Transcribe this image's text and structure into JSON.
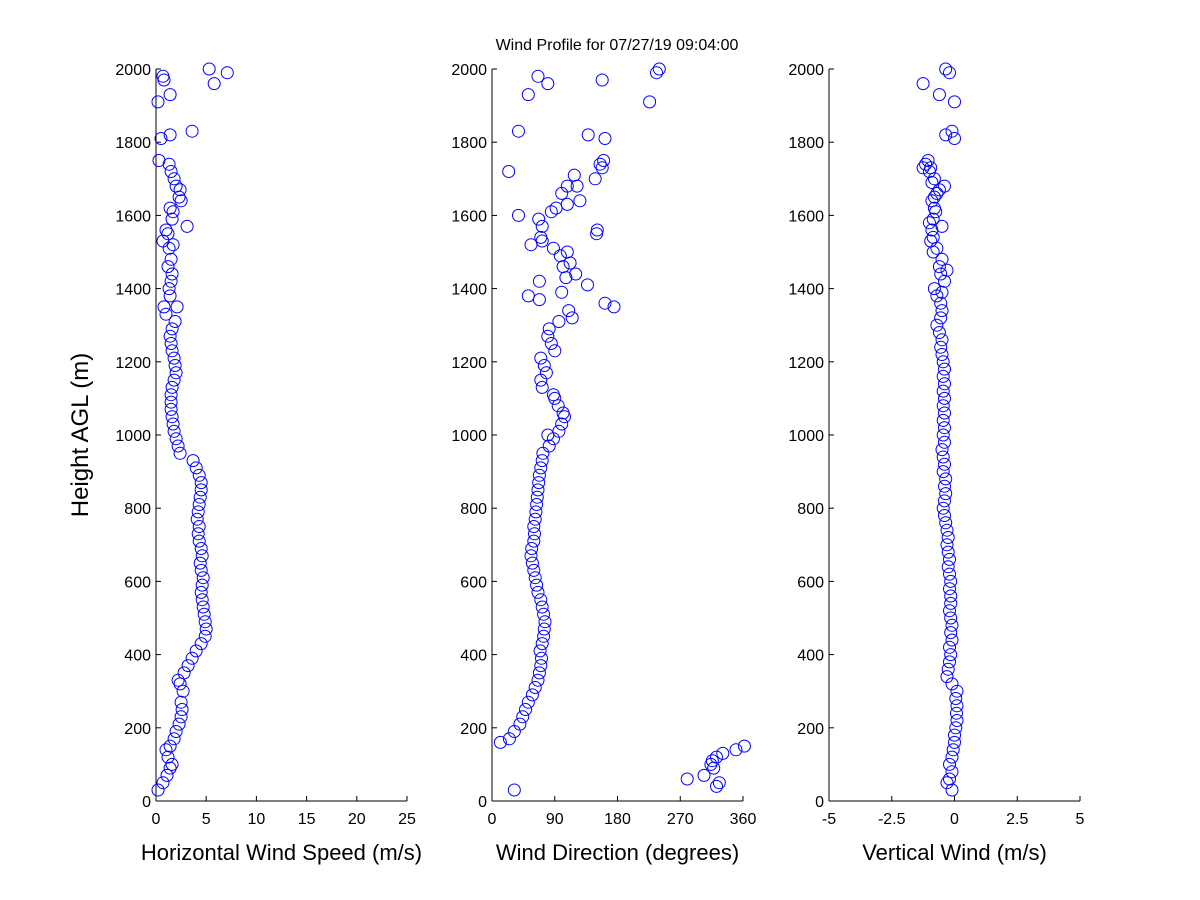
{
  "title": "Wind Profile for  07/27/19 09:04:00",
  "ylabel": "Height AGL (m)",
  "colors": {
    "marker": "#0000ff",
    "axis": "#000000",
    "background": "#ffffff"
  },
  "chart_data": [
    {
      "type": "scatter",
      "xlabel": "Horizontal Wind Speed (m/s)",
      "ylabel": "Height AGL (m)",
      "xlim": [
        0,
        25
      ],
      "ylim": [
        0,
        2000
      ],
      "xticks": [
        0,
        5,
        10,
        15,
        20,
        25
      ],
      "xtick_labels": [
        "0",
        "5",
        "10",
        "15",
        "20",
        "25"
      ],
      "yticks": [
        0,
        200,
        400,
        600,
        800,
        1000,
        1200,
        1400,
        1600,
        1800,
        2000
      ],
      "ytick_labels": [
        "0",
        "200",
        "400",
        "600",
        "800",
        "1000",
        "1200",
        "1400",
        "1600",
        "1800",
        "2000"
      ],
      "grid": false,
      "points": [
        [
          0.2,
          30
        ],
        [
          0.7,
          50
        ],
        [
          1.1,
          70
        ],
        [
          1.4,
          90
        ],
        [
          1.6,
          100
        ],
        [
          1.2,
          120
        ],
        [
          1.0,
          140
        ],
        [
          1.4,
          150
        ],
        [
          1.8,
          170
        ],
        [
          2.0,
          190
        ],
        [
          2.3,
          210
        ],
        [
          2.5,
          230
        ],
        [
          2.6,
          250
        ],
        [
          2.5,
          270
        ],
        [
          2.7,
          300
        ],
        [
          2.4,
          320
        ],
        [
          2.2,
          330
        ],
        [
          2.8,
          350
        ],
        [
          3.2,
          370
        ],
        [
          3.6,
          390
        ],
        [
          4.0,
          410
        ],
        [
          4.5,
          430
        ],
        [
          4.9,
          450
        ],
        [
          5.0,
          470
        ],
        [
          4.9,
          490
        ],
        [
          4.8,
          510
        ],
        [
          4.7,
          530
        ],
        [
          4.6,
          550
        ],
        [
          4.5,
          570
        ],
        [
          4.6,
          590
        ],
        [
          4.7,
          610
        ],
        [
          4.5,
          630
        ],
        [
          4.4,
          650
        ],
        [
          4.6,
          670
        ],
        [
          4.5,
          690
        ],
        [
          4.3,
          710
        ],
        [
          4.2,
          730
        ],
        [
          4.3,
          750
        ],
        [
          4.1,
          770
        ],
        [
          4.2,
          790
        ],
        [
          4.3,
          810
        ],
        [
          4.4,
          830
        ],
        [
          4.5,
          850
        ],
        [
          4.5,
          870
        ],
        [
          4.3,
          890
        ],
        [
          4.0,
          910
        ],
        [
          3.7,
          930
        ],
        [
          2.4,
          950
        ],
        [
          2.2,
          970
        ],
        [
          2.0,
          990
        ],
        [
          1.8,
          1010
        ],
        [
          1.7,
          1030
        ],
        [
          1.6,
          1050
        ],
        [
          1.5,
          1070
        ],
        [
          1.5,
          1090
        ],
        [
          1.5,
          1110
        ],
        [
          1.6,
          1130
        ],
        [
          1.8,
          1150
        ],
        [
          2.0,
          1170
        ],
        [
          1.9,
          1190
        ],
        [
          1.8,
          1210
        ],
        [
          1.6,
          1230
        ],
        [
          1.5,
          1250
        ],
        [
          1.4,
          1270
        ],
        [
          1.6,
          1290
        ],
        [
          1.9,
          1310
        ],
        [
          1.0,
          1330
        ],
        [
          0.8,
          1350
        ],
        [
          2.1,
          1350
        ],
        [
          1.4,
          1380
        ],
        [
          1.3,
          1400
        ],
        [
          1.5,
          1420
        ],
        [
          1.6,
          1440
        ],
        [
          1.2,
          1460
        ],
        [
          1.5,
          1480
        ],
        [
          1.3,
          1510
        ],
        [
          1.7,
          1520
        ],
        [
          0.7,
          1530
        ],
        [
          1.2,
          1550
        ],
        [
          1.0,
          1560
        ],
        [
          3.1,
          1570
        ],
        [
          1.6,
          1590
        ],
        [
          1.7,
          1610
        ],
        [
          1.4,
          1620
        ],
        [
          2.5,
          1640
        ],
        [
          2.3,
          1650
        ],
        [
          2.4,
          1670
        ],
        [
          2.0,
          1680
        ],
        [
          1.8,
          1700
        ],
        [
          1.5,
          1720
        ],
        [
          1.3,
          1740
        ],
        [
          0.3,
          1750
        ],
        [
          1.4,
          1820
        ],
        [
          3.6,
          1830
        ],
        [
          0.5,
          1810
        ],
        [
          0.2,
          1910
        ],
        [
          1.4,
          1930
        ],
        [
          5.8,
          1960
        ],
        [
          0.8,
          1970
        ],
        [
          0.7,
          1980
        ],
        [
          5.3,
          2000
        ],
        [
          7.1,
          1990
        ]
      ]
    },
    {
      "type": "scatter",
      "xlabel": "Wind Direction (degrees)",
      "ylabel": "",
      "xlim": [
        0,
        360
      ],
      "ylim": [
        0,
        2000
      ],
      "xticks": [
        0,
        90,
        180,
        270,
        360
      ],
      "xtick_labels": [
        "0",
        "90",
        "180",
        "270",
        "360"
      ],
      "yticks": [
        0,
        200,
        400,
        600,
        800,
        1000,
        1200,
        1400,
        1600,
        1800,
        2000
      ],
      "ytick_labels": [
        "0",
        "200",
        "400",
        "600",
        "800",
        "1000",
        "1200",
        "1400",
        "1600",
        "1800",
        "2000"
      ],
      "grid": false,
      "points": [
        [
          32,
          30
        ],
        [
          280,
          60
        ],
        [
          304,
          70
        ],
        [
          318,
          90
        ],
        [
          314,
          100
        ],
        [
          316,
          110
        ],
        [
          322,
          40
        ],
        [
          326,
          50
        ],
        [
          331,
          130
        ],
        [
          350,
          140
        ],
        [
          322,
          120
        ],
        [
          362,
          150
        ],
        [
          12,
          160
        ],
        [
          25,
          170
        ],
        [
          32,
          190
        ],
        [
          40,
          210
        ],
        [
          44,
          230
        ],
        [
          48,
          250
        ],
        [
          52,
          270
        ],
        [
          58,
          290
        ],
        [
          62,
          310
        ],
        [
          66,
          330
        ],
        [
          68,
          350
        ],
        [
          70,
          370
        ],
        [
          71,
          390
        ],
        [
          69,
          410
        ],
        [
          72,
          430
        ],
        [
          74,
          450
        ],
        [
          75,
          470
        ],
        [
          76,
          490
        ],
        [
          74,
          510
        ],
        [
          72,
          530
        ],
        [
          70,
          550
        ],
        [
          66,
          570
        ],
        [
          64,
          590
        ],
        [
          62,
          610
        ],
        [
          60,
          630
        ],
        [
          58,
          650
        ],
        [
          56,
          670
        ],
        [
          57,
          690
        ],
        [
          60,
          710
        ],
        [
          61,
          730
        ],
        [
          60,
          750
        ],
        [
          62,
          770
        ],
        [
          63,
          790
        ],
        [
          64,
          810
        ],
        [
          65,
          830
        ],
        [
          66,
          850
        ],
        [
          67,
          870
        ],
        [
          68,
          890
        ],
        [
          70,
          910
        ],
        [
          72,
          930
        ],
        [
          73,
          950
        ],
        [
          82,
          970
        ],
        [
          88,
          990
        ],
        [
          80,
          1000
        ],
        [
          96,
          1010
        ],
        [
          100,
          1030
        ],
        [
          104,
          1050
        ],
        [
          102,
          1060
        ],
        [
          95,
          1080
        ],
        [
          90,
          1100
        ],
        [
          88,
          1110
        ],
        [
          72,
          1130
        ],
        [
          70,
          1150
        ],
        [
          78,
          1170
        ],
        [
          75,
          1190
        ],
        [
          70,
          1210
        ],
        [
          90,
          1230
        ],
        [
          85,
          1250
        ],
        [
          80,
          1270
        ],
        [
          82,
          1290
        ],
        [
          96,
          1310
        ],
        [
          115,
          1320
        ],
        [
          110,
          1340
        ],
        [
          175,
          1350
        ],
        [
          162,
          1360
        ],
        [
          68,
          1370
        ],
        [
          52,
          1380
        ],
        [
          100,
          1390
        ],
        [
          137,
          1410
        ],
        [
          68,
          1420
        ],
        [
          106,
          1430
        ],
        [
          120,
          1440
        ],
        [
          102,
          1460
        ],
        [
          112,
          1470
        ],
        [
          98,
          1490
        ],
        [
          108,
          1500
        ],
        [
          88,
          1510
        ],
        [
          72,
          1530
        ],
        [
          150,
          1550
        ],
        [
          151,
          1560
        ],
        [
          56,
          1520
        ],
        [
          70,
          1540
        ],
        [
          72,
          1570
        ],
        [
          67,
          1590
        ],
        [
          38,
          1600
        ],
        [
          85,
          1610
        ],
        [
          92,
          1620
        ],
        [
          108,
          1630
        ],
        [
          126,
          1640
        ],
        [
          100,
          1660
        ],
        [
          108,
          1680
        ],
        [
          122,
          1680
        ],
        [
          118,
          1710
        ],
        [
          148,
          1700
        ],
        [
          24,
          1720
        ],
        [
          158,
          1730
        ],
        [
          155,
          1740
        ],
        [
          160,
          1750
        ],
        [
          138,
          1820
        ],
        [
          38,
          1830
        ],
        [
          162,
          1810
        ],
        [
          52,
          1930
        ],
        [
          226,
          1910
        ],
        [
          158,
          1970
        ],
        [
          66,
          1980
        ],
        [
          80,
          1960
        ],
        [
          236,
          1990
        ],
        [
          240,
          2000
        ]
      ]
    },
    {
      "type": "scatter",
      "xlabel": "Vertical Wind (m/s)",
      "ylabel": "",
      "xlim": [
        -5,
        5
      ],
      "ylim": [
        0,
        2000
      ],
      "xticks": [
        -5,
        -2.5,
        0,
        2.5,
        5
      ],
      "xtick_labels": [
        "-5",
        "-2.5",
        "0",
        "2.5",
        "5"
      ],
      "yticks": [
        0,
        200,
        400,
        600,
        800,
        1000,
        1200,
        1400,
        1600,
        1800,
        2000
      ],
      "ytick_labels": [
        "0",
        "200",
        "400",
        "600",
        "800",
        "1000",
        "1200",
        "1400",
        "1600",
        "1800",
        "2000"
      ],
      "grid": false,
      "points": [
        [
          -0.1,
          30
        ],
        [
          -0.3,
          50
        ],
        [
          -0.2,
          60
        ],
        [
          -0.1,
          80
        ],
        [
          -0.2,
          100
        ],
        [
          -0.1,
          120
        ],
        [
          -0.05,
          140
        ],
        [
          0.0,
          160
        ],
        [
          0.0,
          180
        ],
        [
          0.05,
          200
        ],
        [
          0.1,
          220
        ],
        [
          0.08,
          240
        ],
        [
          0.1,
          260
        ],
        [
          0.05,
          280
        ],
        [
          0.1,
          300
        ],
        [
          -0.1,
          320
        ],
        [
          -0.3,
          340
        ],
        [
          -0.25,
          360
        ],
        [
          -0.2,
          380
        ],
        [
          -0.15,
          400
        ],
        [
          -0.2,
          420
        ],
        [
          -0.1,
          440
        ],
        [
          -0.15,
          460
        ],
        [
          -0.1,
          480
        ],
        [
          -0.15,
          500
        ],
        [
          -0.2,
          520
        ],
        [
          -0.15,
          540
        ],
        [
          -0.15,
          560
        ],
        [
          -0.2,
          580
        ],
        [
          -0.15,
          600
        ],
        [
          -0.2,
          620
        ],
        [
          -0.25,
          640
        ],
        [
          -0.2,
          660
        ],
        [
          -0.25,
          680
        ],
        [
          -0.3,
          700
        ],
        [
          -0.25,
          720
        ],
        [
          -0.3,
          740
        ],
        [
          -0.35,
          760
        ],
        [
          -0.4,
          780
        ],
        [
          -0.45,
          800
        ],
        [
          -0.4,
          820
        ],
        [
          -0.35,
          840
        ],
        [
          -0.4,
          860
        ],
        [
          -0.35,
          880
        ],
        [
          -0.45,
          900
        ],
        [
          -0.4,
          920
        ],
        [
          -0.45,
          940
        ],
        [
          -0.5,
          960
        ],
        [
          -0.4,
          980
        ],
        [
          -0.45,
          1000
        ],
        [
          -0.4,
          1020
        ],
        [
          -0.45,
          1040
        ],
        [
          -0.4,
          1060
        ],
        [
          -0.45,
          1080
        ],
        [
          -0.4,
          1100
        ],
        [
          -0.45,
          1120
        ],
        [
          -0.4,
          1140
        ],
        [
          -0.45,
          1160
        ],
        [
          -0.4,
          1180
        ],
        [
          -0.45,
          1200
        ],
        [
          -0.5,
          1220
        ],
        [
          -0.55,
          1240
        ],
        [
          -0.5,
          1260
        ],
        [
          -0.6,
          1280
        ],
        [
          -0.7,
          1300
        ],
        [
          -0.55,
          1320
        ],
        [
          -0.5,
          1340
        ],
        [
          -0.55,
          1360
        ],
        [
          -0.7,
          1380
        ],
        [
          -0.5,
          1390
        ],
        [
          -0.8,
          1400
        ],
        [
          -0.4,
          1420
        ],
        [
          -0.55,
          1440
        ],
        [
          -0.3,
          1450
        ],
        [
          -0.6,
          1460
        ],
        [
          -0.5,
          1480
        ],
        [
          -0.85,
          1500
        ],
        [
          -0.7,
          1510
        ],
        [
          -0.95,
          1530
        ],
        [
          -0.85,
          1540
        ],
        [
          -0.9,
          1560
        ],
        [
          -1.0,
          1580
        ],
        [
          -0.5,
          1570
        ],
        [
          -0.85,
          1590
        ],
        [
          -0.75,
          1610
        ],
        [
          -0.8,
          1620
        ],
        [
          -0.9,
          1640
        ],
        [
          -0.8,
          1650
        ],
        [
          -0.7,
          1660
        ],
        [
          -0.6,
          1670
        ],
        [
          -0.4,
          1680
        ],
        [
          -0.9,
          1690
        ],
        [
          -0.8,
          1700
        ],
        [
          -1.0,
          1720
        ],
        [
          -0.95,
          1730
        ],
        [
          -1.15,
          1740
        ],
        [
          -1.25,
          1730
        ],
        [
          -1.05,
          1750
        ],
        [
          -0.35,
          1820
        ],
        [
          -0.1,
          1830
        ],
        [
          0.0,
          1810
        ],
        [
          -1.25,
          1960
        ],
        [
          -0.6,
          1930
        ],
        [
          0.0,
          1910
        ],
        [
          -0.35,
          2000
        ],
        [
          -0.2,
          1990
        ]
      ]
    }
  ]
}
